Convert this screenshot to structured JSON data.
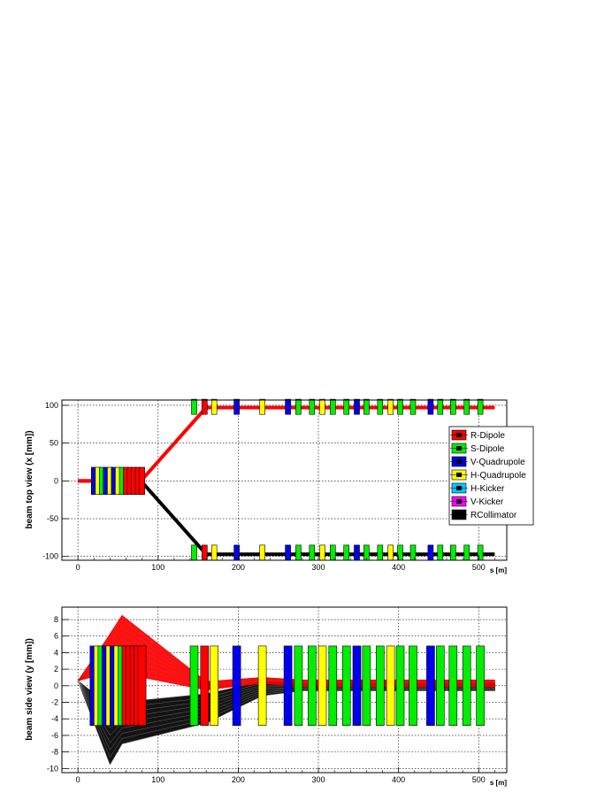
{
  "colors": {
    "R-Dipole": "#ff0000",
    "S-Dipole": "#00ee00",
    "V-Quadrupole": "#0000ee",
    "H-Quadrupole": "#ffff00",
    "H-Kicker": "#00c8ff",
    "V-Kicker": "#ff00ff",
    "RCollimator": "#000000",
    "beam_up": "#ff0000",
    "beam_down": "#000000"
  },
  "legend": {
    "placement": "right",
    "items": [
      "R-Dipole",
      "S-Dipole",
      "V-Quadrupole",
      "H-Quadrupole",
      "H-Kicker",
      "V-Kicker",
      "RCollimator"
    ]
  },
  "chart_data": [
    {
      "type": "line",
      "ylabel": "beam top view (x [mm])",
      "xlabel": "s [m]",
      "xlim": [
        -20,
        535
      ],
      "ylim": [
        -105,
        107
      ],
      "xticks": [
        0,
        100,
        200,
        300,
        400,
        500
      ],
      "yticks": [
        -100,
        -50,
        0,
        50,
        100
      ],
      "grid": true,
      "beam_upper": [
        [
          0,
          0
        ],
        [
          60,
          0
        ],
        [
          82,
          4
        ],
        [
          160,
          97
        ],
        [
          520,
          97
        ]
      ],
      "beam_lower": [
        [
          0,
          0
        ],
        [
          60,
          0
        ],
        [
          82,
          -4
        ],
        [
          160,
          -97
        ],
        [
          520,
          -97
        ]
      ],
      "magnets": [
        {
          "s": 20,
          "type": "V-Quadrupole",
          "y": [
            -18,
            18
          ]
        },
        {
          "s": 25,
          "type": "H-Quadrupole",
          "y": [
            -18,
            18
          ]
        },
        {
          "s": 30,
          "type": "S-Dipole",
          "y": [
            -18,
            18
          ]
        },
        {
          "s": 35,
          "type": "V-Quadrupole",
          "y": [
            -18,
            18
          ]
        },
        {
          "s": 40,
          "type": "H-Quadrupole",
          "y": [
            -18,
            18
          ]
        },
        {
          "s": 45,
          "type": "V-Quadrupole",
          "y": [
            -18,
            18
          ]
        },
        {
          "s": 50,
          "type": "H-Quadrupole",
          "y": [
            -18,
            18
          ]
        },
        {
          "s": 55,
          "type": "S-Dipole",
          "y": [
            -18,
            18
          ]
        },
        {
          "s": 60,
          "type": "R-Dipole",
          "y": [
            -18,
            18
          ]
        },
        {
          "s": 65,
          "type": "R-Dipole",
          "y": [
            -18,
            18
          ]
        },
        {
          "s": 70,
          "type": "R-Dipole",
          "y": [
            -18,
            18
          ]
        },
        {
          "s": 75,
          "type": "R-Dipole",
          "y": [
            -18,
            18
          ]
        },
        {
          "s": 80,
          "type": "R-Dipole",
          "y": [
            -18,
            18
          ]
        },
        {
          "s": 145,
          "type": "S-Dipole",
          "y": [
            88,
            108
          ]
        },
        {
          "s": 145,
          "type": "S-Dipole",
          "y": [
            -105,
            -85
          ]
        },
        {
          "s": 158,
          "type": "R-Dipole",
          "y": [
            88,
            108
          ]
        },
        {
          "s": 158,
          "type": "R-Dipole",
          "y": [
            -105,
            -85
          ]
        },
        {
          "s": 170,
          "type": "H-Quadrupole",
          "y": [
            88,
            108
          ]
        },
        {
          "s": 170,
          "type": "H-Quadrupole",
          "y": [
            -105,
            -85
          ]
        },
        {
          "s": 198,
          "type": "V-Quadrupole",
          "y": [
            88,
            108
          ]
        },
        {
          "s": 198,
          "type": "V-Quadrupole",
          "y": [
            -105,
            -85
          ]
        },
        {
          "s": 230,
          "type": "H-Quadrupole",
          "y": [
            88,
            108
          ]
        },
        {
          "s": 230,
          "type": "H-Quadrupole",
          "y": [
            -105,
            -85
          ]
        },
        {
          "s": 262,
          "type": "V-Quadrupole",
          "y": [
            88,
            108
          ]
        },
        {
          "s": 262,
          "type": "V-Quadrupole",
          "y": [
            -105,
            -85
          ]
        },
        {
          "s": 275,
          "type": "S-Dipole",
          "y": [
            88,
            108
          ]
        },
        {
          "s": 275,
          "type": "S-Dipole",
          "y": [
            -105,
            -85
          ]
        },
        {
          "s": 292,
          "type": "S-Dipole",
          "y": [
            88,
            108
          ]
        },
        {
          "s": 292,
          "type": "S-Dipole",
          "y": [
            -105,
            -85
          ]
        },
        {
          "s": 305,
          "type": "H-Quadrupole",
          "y": [
            88,
            108
          ]
        },
        {
          "s": 305,
          "type": "H-Quadrupole",
          "y": [
            -105,
            -85
          ]
        },
        {
          "s": 318,
          "type": "S-Dipole",
          "y": [
            88,
            108
          ]
        },
        {
          "s": 318,
          "type": "S-Dipole",
          "y": [
            -105,
            -85
          ]
        },
        {
          "s": 335,
          "type": "S-Dipole",
          "y": [
            88,
            108
          ]
        },
        {
          "s": 335,
          "type": "S-Dipole",
          "y": [
            -105,
            -85
          ]
        },
        {
          "s": 348,
          "type": "V-Quadrupole",
          "y": [
            88,
            108
          ]
        },
        {
          "s": 348,
          "type": "V-Quadrupole",
          "y": [
            -105,
            -85
          ]
        },
        {
          "s": 360,
          "type": "S-Dipole",
          "y": [
            88,
            108
          ]
        },
        {
          "s": 360,
          "type": "S-Dipole",
          "y": [
            -105,
            -85
          ]
        },
        {
          "s": 377,
          "type": "S-Dipole",
          "y": [
            88,
            108
          ]
        },
        {
          "s": 377,
          "type": "S-Dipole",
          "y": [
            -105,
            -85
          ]
        },
        {
          "s": 390,
          "type": "H-Quadrupole",
          "y": [
            88,
            108
          ]
        },
        {
          "s": 390,
          "type": "H-Quadrupole",
          "y": [
            -105,
            -85
          ]
        },
        {
          "s": 402,
          "type": "S-Dipole",
          "y": [
            88,
            108
          ]
        },
        {
          "s": 402,
          "type": "S-Dipole",
          "y": [
            -105,
            -85
          ]
        },
        {
          "s": 418,
          "type": "S-Dipole",
          "y": [
            88,
            108
          ]
        },
        {
          "s": 418,
          "type": "S-Dipole",
          "y": [
            -105,
            -85
          ]
        },
        {
          "s": 440,
          "type": "V-Quadrupole",
          "y": [
            88,
            108
          ]
        },
        {
          "s": 440,
          "type": "V-Quadrupole",
          "y": [
            -105,
            -85
          ]
        },
        {
          "s": 452,
          "type": "S-Dipole",
          "y": [
            88,
            108
          ]
        },
        {
          "s": 452,
          "type": "S-Dipole",
          "y": [
            -105,
            -85
          ]
        },
        {
          "s": 468,
          "type": "S-Dipole",
          "y": [
            88,
            108
          ]
        },
        {
          "s": 468,
          "type": "S-Dipole",
          "y": [
            -105,
            -85
          ]
        },
        {
          "s": 485,
          "type": "S-Dipole",
          "y": [
            88,
            108
          ]
        },
        {
          "s": 485,
          "type": "S-Dipole",
          "y": [
            -105,
            -85
          ]
        },
        {
          "s": 502,
          "type": "S-Dipole",
          "y": [
            88,
            108
          ]
        },
        {
          "s": 502,
          "type": "S-Dipole",
          "y": [
            -105,
            -85
          ]
        }
      ]
    },
    {
      "type": "line",
      "ylabel": "beam side view (y [mm])",
      "xlabel": "s [m]",
      "xlim": [
        -20,
        535
      ],
      "ylim": [
        -10.5,
        9.5
      ],
      "xticks": [
        0,
        100,
        200,
        300,
        400,
        500
      ],
      "yticks": [
        -10,
        -8,
        -6,
        -4,
        -2,
        0,
        2,
        4,
        6,
        8
      ],
      "grid": true,
      "beam_upper_range": [
        [
          0,
          0.6,
          0.6
        ],
        [
          35,
          1.5,
          5.5
        ],
        [
          55,
          1.5,
          8.5
        ],
        [
          160,
          -0.5,
          0.5
        ],
        [
          230,
          0.3,
          1.0
        ],
        [
          280,
          -0.1,
          0.7
        ],
        [
          520,
          -0.1,
          0.7
        ]
      ],
      "beam_lower_range": [
        [
          0,
          0.6,
          0.6
        ],
        [
          40,
          -9.5,
          -2.5
        ],
        [
          55,
          -7,
          -2
        ],
        [
          160,
          -4.5,
          -1.0
        ],
        [
          230,
          -1.2,
          0.5
        ],
        [
          280,
          -0.6,
          0.3
        ],
        [
          520,
          -0.6,
          0.3
        ]
      ],
      "magnets": [
        {
          "s": 20,
          "type": "V-Quadrupole",
          "y": [
            -4.8,
            4.8
          ]
        },
        {
          "s": 25,
          "type": "H-Quadrupole",
          "y": [
            -4.8,
            4.8
          ]
        },
        {
          "s": 30,
          "type": "S-Dipole",
          "y": [
            -4.8,
            4.8
          ]
        },
        {
          "s": 35,
          "type": "V-Quadrupole",
          "y": [
            -4.8,
            4.8
          ]
        },
        {
          "s": 40,
          "type": "H-Quadrupole",
          "y": [
            -4.8,
            4.8
          ]
        },
        {
          "s": 45,
          "type": "V-Quadrupole",
          "y": [
            -4.8,
            4.8
          ]
        },
        {
          "s": 50,
          "type": "H-Quadrupole",
          "y": [
            -4.8,
            4.8
          ]
        },
        {
          "s": 55,
          "type": "S-Dipole",
          "y": [
            -4.8,
            4.8
          ]
        },
        {
          "s": 60,
          "type": "R-Dipole",
          "y": [
            -4.8,
            4.8
          ]
        },
        {
          "s": 65,
          "type": "R-Dipole",
          "y": [
            -4.8,
            4.8
          ]
        },
        {
          "s": 70,
          "type": "R-Dipole",
          "y": [
            -4.8,
            4.8
          ]
        },
        {
          "s": 75,
          "type": "R-Dipole",
          "y": [
            -4.8,
            4.8
          ]
        },
        {
          "s": 80,
          "type": "R-Dipole",
          "y": [
            -4.8,
            4.8
          ]
        },
        {
          "s": 145,
          "type": "S-Dipole",
          "y": [
            -4.8,
            4.8
          ]
        },
        {
          "s": 158,
          "type": "R-Dipole",
          "y": [
            -4.8,
            4.8
          ]
        },
        {
          "s": 170,
          "type": "H-Quadrupole",
          "y": [
            -4.8,
            4.8
          ]
        },
        {
          "s": 198,
          "type": "V-Quadrupole",
          "y": [
            -4.8,
            4.8
          ]
        },
        {
          "s": 230,
          "type": "H-Quadrupole",
          "y": [
            -4.8,
            4.8
          ]
        },
        {
          "s": 262,
          "type": "V-Quadrupole",
          "y": [
            -4.8,
            4.8
          ]
        },
        {
          "s": 275,
          "type": "S-Dipole",
          "y": [
            -4.8,
            4.8
          ]
        },
        {
          "s": 292,
          "type": "S-Dipole",
          "y": [
            -4.8,
            4.8
          ]
        },
        {
          "s": 305,
          "type": "H-Quadrupole",
          "y": [
            -4.8,
            4.8
          ]
        },
        {
          "s": 318,
          "type": "S-Dipole",
          "y": [
            -4.8,
            4.8
          ]
        },
        {
          "s": 335,
          "type": "S-Dipole",
          "y": [
            -4.8,
            4.8
          ]
        },
        {
          "s": 348,
          "type": "V-Quadrupole",
          "y": [
            -4.8,
            4.8
          ]
        },
        {
          "s": 360,
          "type": "S-Dipole",
          "y": [
            -4.8,
            4.8
          ]
        },
        {
          "s": 377,
          "type": "S-Dipole",
          "y": [
            -4.8,
            4.8
          ]
        },
        {
          "s": 390,
          "type": "H-Quadrupole",
          "y": [
            -4.8,
            4.8
          ]
        },
        {
          "s": 402,
          "type": "S-Dipole",
          "y": [
            -4.8,
            4.8
          ]
        },
        {
          "s": 418,
          "type": "S-Dipole",
          "y": [
            -4.8,
            4.8
          ]
        },
        {
          "s": 440,
          "type": "V-Quadrupole",
          "y": [
            -4.8,
            4.8
          ]
        },
        {
          "s": 452,
          "type": "S-Dipole",
          "y": [
            -4.8,
            4.8
          ]
        },
        {
          "s": 468,
          "type": "S-Dipole",
          "y": [
            -4.8,
            4.8
          ]
        },
        {
          "s": 485,
          "type": "S-Dipole",
          "y": [
            -4.8,
            4.8
          ]
        },
        {
          "s": 502,
          "type": "S-Dipole",
          "y": [
            -4.8,
            4.8
          ]
        }
      ]
    }
  ]
}
